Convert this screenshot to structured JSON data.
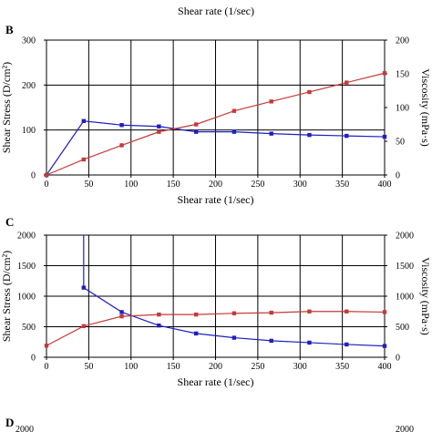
{
  "top_fragment": {
    "xlabel": "Shear rate (1/sec)"
  },
  "chart_data": [
    {
      "panel": "B",
      "type": "line",
      "xlabel": "Shear rate (1/sec)",
      "ylabel_left": "Shear Stress (D/cm²)",
      "ylabel_right": "Viscosity (mPa·s)",
      "xlim": [
        0,
        400
      ],
      "ylim_left": [
        0,
        300
      ],
      "ylim_right": [
        0,
        200
      ],
      "xticks": [
        0,
        50,
        100,
        150,
        200,
        250,
        300,
        350,
        400
      ],
      "yticks_left": [
        0,
        100,
        200,
        300
      ],
      "yticks_right": [
        0,
        50,
        100,
        150,
        200
      ],
      "grid": true,
      "series": [
        {
          "axis": "left",
          "color": "#1f1fbf",
          "x": [
            0,
            44,
            89,
            133,
            177,
            222,
            266,
            311,
            355,
            400
          ],
          "y": [
            0,
            120,
            111,
            108,
            96,
            96,
            92,
            89,
            87,
            85
          ]
        },
        {
          "axis": "right",
          "color": "#c43a3a",
          "x": [
            0,
            44,
            89,
            133,
            177,
            222,
            266,
            311,
            355,
            400
          ],
          "y": [
            0,
            23,
            44,
            64,
            75,
            95,
            109,
            123,
            137,
            151
          ]
        }
      ]
    },
    {
      "panel": "C",
      "type": "line",
      "xlabel": "Shear rate (1/sec)",
      "ylabel_left": "Shear Stress (D/cm²)",
      "ylabel_right": "Viscosity (mPa·s)",
      "xlim": [
        0,
        400
      ],
      "ylim_left": [
        0,
        2000
      ],
      "ylim_right": [
        0,
        2000
      ],
      "xticks": [
        0,
        50,
        100,
        150,
        200,
        250,
        300,
        350,
        400
      ],
      "yticks_left": [
        0,
        500,
        1000,
        1500,
        2000
      ],
      "yticks_right": [
        0,
        500,
        1000,
        1500,
        2000
      ],
      "grid": true,
      "series": [
        {
          "axis": "right",
          "color": "#1f1fbf",
          "x": [
            44,
            44,
            89,
            133,
            177,
            222,
            266,
            311,
            355,
            400
          ],
          "y": [
            2000,
            1140,
            740,
            520,
            390,
            320,
            270,
            240,
            210,
            185
          ]
        },
        {
          "axis": "left",
          "color": "#c43a3a",
          "x": [
            0,
            44,
            89,
            133,
            177,
            222,
            266,
            311,
            355,
            400
          ],
          "y": [
            190,
            510,
            670,
            700,
            700,
            720,
            730,
            750,
            750,
            740
          ]
        }
      ]
    }
  ],
  "bottom_fragment": {
    "panel": "D",
    "ytick_left": "2000",
    "ytick_right": "2000"
  }
}
